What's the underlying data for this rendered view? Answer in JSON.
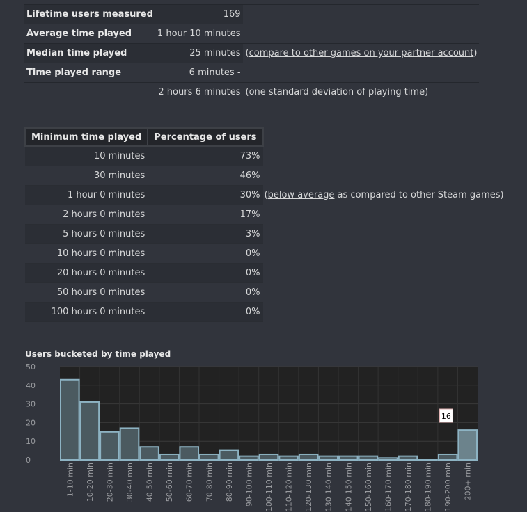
{
  "stats": [
    {
      "label": "Lifetime users measured",
      "value": "169"
    },
    {
      "label": "Average time played",
      "value": "1 hour 10 minutes"
    },
    {
      "label": "Median time played",
      "value": "25 minutes",
      "note_pre": "(",
      "link": "compare to other games on your partner account",
      "note_post": ")"
    },
    {
      "label": "Time played range",
      "value": "6 minutes -"
    },
    {
      "label": "",
      "value": "2 hours 6 minutes",
      "note": "(one standard deviation of playing time)"
    }
  ],
  "pct_table": {
    "headers": [
      "Minimum time played",
      "Percentage of users"
    ],
    "rows": [
      {
        "time": "10 minutes",
        "pct": "73%"
      },
      {
        "time": "30 minutes",
        "pct": "46%"
      },
      {
        "time": "1 hour 0 minutes",
        "pct": "30%",
        "note_pre": "(",
        "link": "below average",
        "note_post": " as compared to other Steam games)"
      },
      {
        "time": "2 hours 0 minutes",
        "pct": "17%"
      },
      {
        "time": "5 hours 0 minutes",
        "pct": "3%"
      },
      {
        "time": "10 hours 0 minutes",
        "pct": "0%"
      },
      {
        "time": "20 hours 0 minutes",
        "pct": "0%"
      },
      {
        "time": "50 hours 0 minutes",
        "pct": "0%"
      },
      {
        "time": "100 hours 0 minutes",
        "pct": "0%"
      }
    ]
  },
  "chart_data": {
    "type": "bar",
    "title": "Users bucketed by time played",
    "categories": [
      "1-10 min",
      "10-20 min",
      "20-30 min",
      "30-40 min",
      "40-50 min",
      "50-60 min",
      "60-70 min",
      "70-80 min",
      "80-90 min",
      "90-100 min",
      "100-110 min",
      "110-120 min",
      "120-130 min",
      "130-140 min",
      "140-150 min",
      "150-160 min",
      "160-170 min",
      "170-180 min",
      "180-190 min",
      "190-200 min",
      "200+ min"
    ],
    "values": [
      43,
      31,
      15,
      17,
      7,
      3,
      7,
      3,
      5,
      2,
      3,
      2,
      3,
      2,
      2,
      2,
      1,
      2,
      0,
      3,
      16
    ],
    "ylim": [
      0,
      50
    ],
    "yticks": [
      0,
      10,
      20,
      30,
      40,
      50
    ],
    "grid": true,
    "highlighted_index": 20,
    "tooltip": "16",
    "colors": {
      "bar_fill": "#4b5a60",
      "bar_stroke": "#8db3c3",
      "highlight_fill": "#6c838c",
      "plot_bg": "#222222",
      "grid": "#3a3a3a"
    }
  }
}
